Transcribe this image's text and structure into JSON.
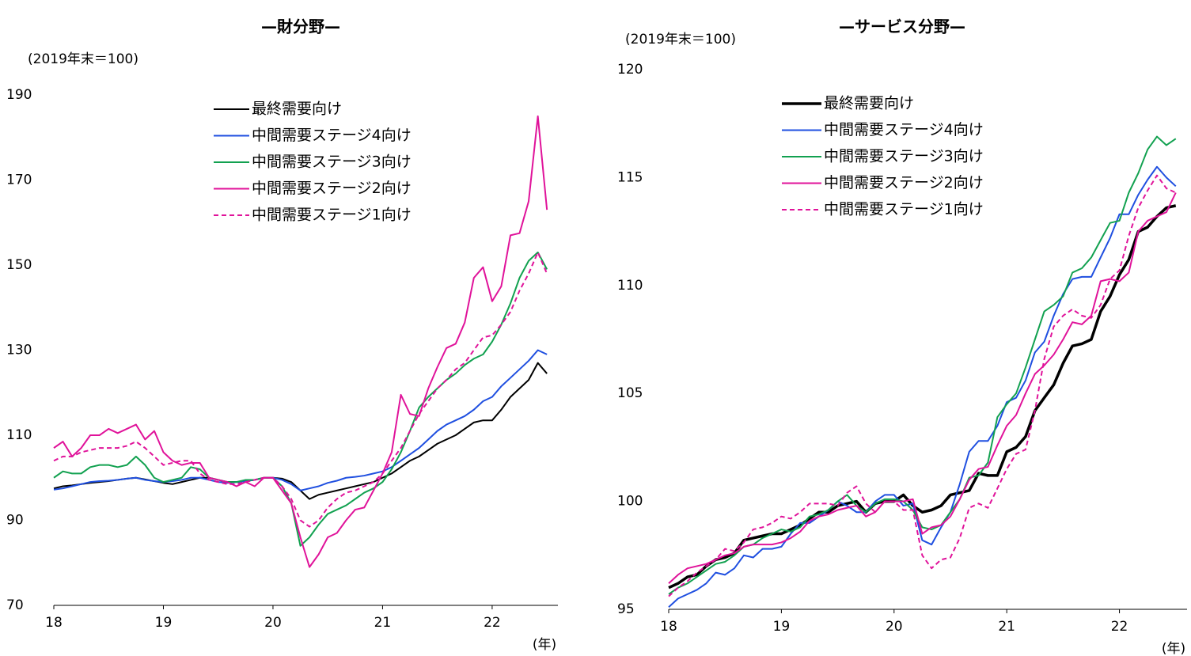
{
  "chart_data": [
    {
      "type": "line",
      "title": "—財分野—",
      "ylabel": "(2019年末＝100)",
      "xlabel": "(年)",
      "xlim": [
        18,
        22.6
      ],
      "xticks": [
        18,
        19,
        20,
        21,
        22
      ],
      "ylim": [
        70,
        190
      ],
      "yticks": [
        70,
        90,
        110,
        130,
        150,
        170,
        190
      ],
      "x": [
        18,
        18.083,
        18.167,
        18.25,
        18.333,
        18.417,
        18.5,
        18.583,
        18.667,
        18.75,
        18.833,
        18.917,
        19,
        19.083,
        19.167,
        19.25,
        19.333,
        19.417,
        19.5,
        19.583,
        19.667,
        19.75,
        19.833,
        19.917,
        20,
        20.083,
        20.167,
        20.25,
        20.333,
        20.417,
        20.5,
        20.583,
        20.667,
        20.75,
        20.833,
        20.917,
        21,
        21.083,
        21.167,
        21.25,
        21.333,
        21.417,
        21.5,
        21.583,
        21.667,
        21.75,
        21.833,
        21.917,
        22,
        22.083,
        22.167,
        22.25,
        22.333,
        22.417,
        22.5
      ],
      "series": [
        {
          "name": "最終需要向け",
          "color": "#000000",
          "line_width": 2,
          "dashed": false,
          "values": [
            97.5,
            98,
            98.2,
            98.5,
            98.8,
            99,
            99.2,
            99.5,
            99.8,
            100,
            99.6,
            99.2,
            98.8,
            98.5,
            99,
            99.5,
            100,
            100,
            99.5,
            99,
            99,
            99.2,
            99.5,
            100,
            100,
            99.8,
            99,
            97,
            95,
            96,
            96.5,
            97,
            97.5,
            98,
            98.5,
            99,
            100,
            101,
            102.5,
            104,
            105,
            106.5,
            108,
            109,
            110,
            111.5,
            113,
            113.5,
            113.5,
            116,
            119,
            121,
            123,
            127,
            124.5
          ]
        },
        {
          "name": "中間需要ステージ4向け",
          "color": "#1f4fe0",
          "line_width": 2,
          "dashed": false,
          "values": [
            97.2,
            97.5,
            98,
            98.5,
            99,
            99.2,
            99.3,
            99.5,
            99.8,
            100,
            99.5,
            99.2,
            99,
            99.2,
            99.5,
            100,
            100,
            99.5,
            99,
            98.8,
            99,
            99.2,
            99.5,
            100,
            100,
            99.5,
            98.5,
            97,
            97.5,
            98,
            98.8,
            99.3,
            100,
            100.2,
            100.5,
            101,
            101.5,
            102.5,
            104,
            105.5,
            107,
            109,
            111,
            112.5,
            113.5,
            114.5,
            116,
            118,
            119,
            121.5,
            123.5,
            125.5,
            127.5,
            130,
            129
          ]
        },
        {
          "name": "中間需要ステージ3向け",
          "color": "#12a150",
          "line_width": 2,
          "dashed": false,
          "values": [
            100,
            101.5,
            101,
            101,
            102.5,
            103,
            103,
            102.5,
            103,
            105,
            103,
            100,
            99,
            99.5,
            100,
            102.5,
            102,
            100,
            99.5,
            99,
            99,
            99.5,
            99.5,
            100,
            100,
            98,
            94,
            84,
            86,
            89,
            91.5,
            92.5,
            93.5,
            95,
            96.5,
            97.5,
            99,
            102,
            106,
            111,
            116.5,
            119,
            121,
            123,
            124.5,
            126.5,
            128,
            129,
            132,
            136,
            141,
            147,
            151,
            153,
            149
          ]
        },
        {
          "name": "中間需要ステージ2向け",
          "color": "#e0139a",
          "line_width": 2,
          "dashed": false,
          "values": [
            107,
            108.5,
            105,
            107,
            110,
            110,
            111.5,
            110.5,
            111.5,
            112.5,
            109,
            111,
            106,
            104,
            103,
            103.5,
            103.5,
            100,
            99.5,
            99,
            98,
            99,
            98,
            100,
            100,
            97,
            94,
            86,
            79,
            82,
            86,
            87,
            90,
            92.5,
            93,
            97,
            101,
            106,
            119.5,
            115,
            114.5,
            121,
            126,
            130.5,
            131.5,
            136.5,
            147,
            149.5,
            141.5,
            145,
            157,
            157.5,
            165,
            185,
            163
          ]
        },
        {
          "name": "中間需要ステージ1向け",
          "color": "#e0139a",
          "line_width": 2,
          "dashed": true,
          "values": [
            104,
            105,
            105,
            106,
            106.5,
            107,
            107,
            107,
            107.5,
            108.5,
            107,
            105,
            103,
            103.5,
            104,
            104,
            101,
            99.5,
            99,
            98.5,
            98.5,
            99,
            99.5,
            100,
            100,
            98,
            95,
            90,
            88.5,
            90,
            93,
            95,
            96.5,
            97,
            98,
            99,
            101,
            104,
            107,
            111,
            115,
            118,
            121,
            123,
            125.5,
            127,
            130,
            133,
            133.5,
            136,
            139,
            144,
            148,
            153,
            148
          ]
        }
      ]
    },
    {
      "type": "line",
      "title": "—サービス分野—",
      "ylabel": "(2019年末＝100)",
      "xlabel": "(年)",
      "xlim": [
        18,
        22.6
      ],
      "xticks": [
        18,
        19,
        20,
        21,
        22
      ],
      "ylim": [
        95,
        120
      ],
      "yticks": [
        95,
        100,
        105,
        110,
        115,
        120
      ],
      "x": [
        18,
        18.083,
        18.167,
        18.25,
        18.333,
        18.417,
        18.5,
        18.583,
        18.667,
        18.75,
        18.833,
        18.917,
        19,
        19.083,
        19.167,
        19.25,
        19.333,
        19.417,
        19.5,
        19.583,
        19.667,
        19.75,
        19.833,
        19.917,
        20,
        20.083,
        20.167,
        20.25,
        20.333,
        20.417,
        20.5,
        20.583,
        20.667,
        20.75,
        20.833,
        20.917,
        21,
        21.083,
        21.167,
        21.25,
        21.333,
        21.417,
        21.5,
        21.583,
        21.667,
        21.75,
        21.833,
        21.917,
        22,
        22.083,
        22.167,
        22.25,
        22.333,
        22.417,
        22.5
      ],
      "series": [
        {
          "name": "最終需要向け",
          "color": "#000000",
          "line_width": 3.5,
          "dashed": false,
          "values": [
            96,
            96.2,
            96.5,
            96.6,
            97,
            97.3,
            97.4,
            97.6,
            98.2,
            98.3,
            98.4,
            98.5,
            98.5,
            98.7,
            98.9,
            99.2,
            99.5,
            99.5,
            99.8,
            99.9,
            100,
            99.5,
            99.9,
            100,
            100,
            100.3,
            99.8,
            99.5,
            99.6,
            99.8,
            100.3,
            100.4,
            100.5,
            101.3,
            101.2,
            101.2,
            102.3,
            102.5,
            103,
            104.2,
            104.8,
            105.4,
            106.4,
            107.2,
            107.3,
            107.5,
            108.8,
            109.5,
            110.5,
            111.2,
            112.5,
            112.7,
            113.2,
            113.6,
            113.7
          ]
        },
        {
          "name": "中間需要ステージ4向け",
          "color": "#1f4fe0",
          "line_width": 2,
          "dashed": false,
          "values": [
            95.1,
            95.5,
            95.7,
            95.9,
            96.2,
            96.7,
            96.6,
            96.9,
            97.5,
            97.4,
            97.8,
            97.8,
            97.9,
            98.5,
            99,
            99,
            99.3,
            99.6,
            100,
            99.8,
            99.5,
            99.5,
            100,
            100.3,
            100.3,
            99.8,
            99.9,
            98.2,
            98,
            98.8,
            99.5,
            100.8,
            102.3,
            102.8,
            102.8,
            103.5,
            104.6,
            104.8,
            105.6,
            106.9,
            107.4,
            108.6,
            109.6,
            110.3,
            110.4,
            110.4,
            111.3,
            112.2,
            113.3,
            113.3,
            114.2,
            114.9,
            115.5,
            115,
            114.6
          ]
        },
        {
          "name": "中間需要ステージ3向け",
          "color": "#12a150",
          "line_width": 2,
          "dashed": false,
          "values": [
            95.7,
            96,
            96.2,
            96.5,
            96.8,
            97.1,
            97.2,
            97.5,
            97.9,
            98,
            98.3,
            98.5,
            98.7,
            98.6,
            98.8,
            99.3,
            99.4,
            99.6,
            100,
            100.3,
            99.8,
            99.5,
            99.9,
            100.1,
            100.1,
            100,
            99.6,
            98.8,
            98.7,
            98.9,
            99.5,
            100.1,
            101.1,
            101.2,
            101.8,
            103.9,
            104.5,
            105,
            106.2,
            107.5,
            108.8,
            109.1,
            109.5,
            110.6,
            110.8,
            111.3,
            112.1,
            112.9,
            113,
            114.3,
            115.2,
            116.3,
            116.9,
            116.5,
            116.8
          ]
        },
        {
          "name": "中間需要ステージ2向け",
          "color": "#e0139a",
          "line_width": 2,
          "dashed": false,
          "values": [
            96.2,
            96.6,
            96.9,
            97,
            97.1,
            97.3,
            97.5,
            97.6,
            97.9,
            98,
            98,
            98,
            98.1,
            98.3,
            98.6,
            99.1,
            99.3,
            99.4,
            99.6,
            99.7,
            99.8,
            99.3,
            99.5,
            100,
            100,
            100,
            100.1,
            98.5,
            98.8,
            98.9,
            99.3,
            100.1,
            101,
            101.5,
            101.6,
            102.6,
            103.5,
            104,
            105,
            105.9,
            106.3,
            106.8,
            107.5,
            108.3,
            108.2,
            108.6,
            110.2,
            110.3,
            110.2,
            110.6,
            112.5,
            113,
            113.2,
            113.4,
            114.3
          ]
        },
        {
          "name": "中間需要ステージ1向け",
          "color": "#e0139a",
          "line_width": 2,
          "dashed": true,
          "values": [
            95.6,
            96,
            96.3,
            96.7,
            97,
            97.3,
            97.8,
            97.7,
            98.1,
            98.7,
            98.8,
            99,
            99.3,
            99.2,
            99.5,
            99.9,
            99.9,
            99.9,
            99.8,
            100.4,
            100.7,
            99.9,
            99.5,
            100,
            100,
            99.6,
            99.6,
            97.5,
            96.9,
            97.3,
            97.4,
            98.3,
            99.7,
            99.9,
            99.7,
            100.6,
            101.5,
            102.2,
            102.4,
            104.2,
            106.6,
            108.1,
            108.6,
            108.9,
            108.6,
            108.5,
            109.1,
            110.3,
            110.7,
            112.3,
            113.6,
            114.4,
            115.1,
            114.5,
            114.3
          ]
        }
      ]
    }
  ]
}
